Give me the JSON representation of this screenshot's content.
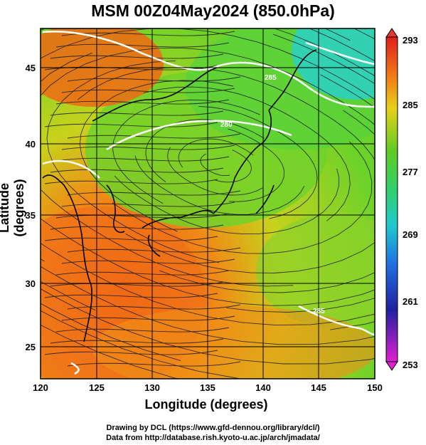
{
  "title": "MSM 00Z04May2024 (850.0hPa)",
  "x_axis_label": "Longitude (degrees)",
  "y_axis_label": "Latitude  (degrees)",
  "x_ticks": [
    "120",
    "125",
    "130",
    "135",
    "140",
    "145",
    "150"
  ],
  "y_ticks": [
    "25",
    "30",
    "35",
    "40",
    "45"
  ],
  "colorbar_ticks": [
    "293",
    "285",
    "277",
    "269",
    "261",
    "253"
  ],
  "credit_line_1": "Drawing by DCL (https://www.gfd-dennou.org/library/dcl/)",
  "credit_line_2": "Data from http://database.rish.kyoto-u.ac.jp/arch/jmadata/",
  "contour_labels": [
    "285",
    "280",
    "285"
  ],
  "map_extent": {
    "lon": [
      120,
      150
    ],
    "lat": [
      22.4,
      47.6
    ]
  },
  "colorbar_range": [
    253,
    293
  ],
  "colors": {
    "warm": "#f05a14",
    "mid": "#7cd22a",
    "cool": "#2bd2c8",
    "land_outline": "#000000",
    "contour": "#ffffff"
  }
}
